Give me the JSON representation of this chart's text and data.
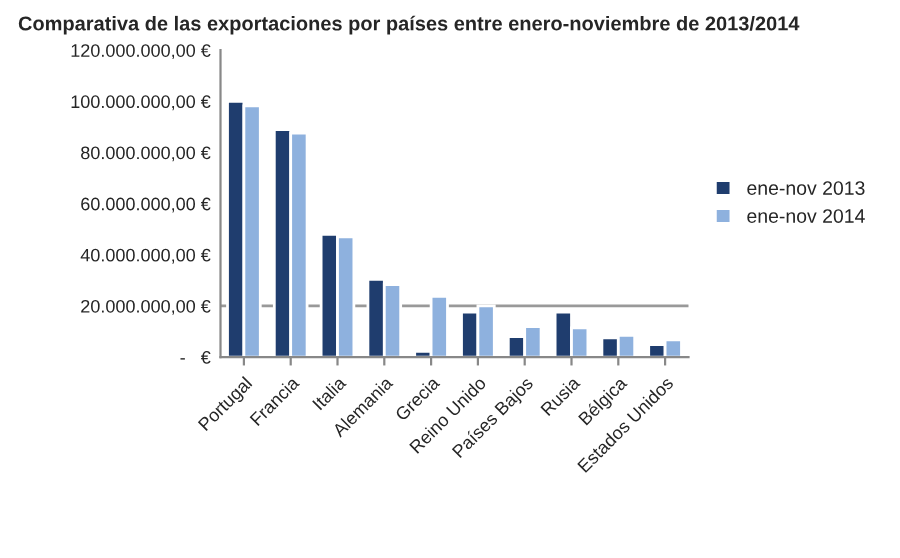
{
  "chart_data": {
    "type": "bar",
    "title": "Comparativa de las exportaciones por países entre enero-noviembre de 2013/2014",
    "categories": [
      "Portugal",
      "Francia",
      "Italia",
      "Alemania",
      "Grecia",
      "Reino Unido",
      "Países Bajos",
      "Rusia",
      "Bélgica",
      "Estados Unidos"
    ],
    "series": [
      {
        "name": "ene-nov 2013",
        "color": "#1f3d6e",
        "values": [
          100000000,
          89000000,
          48000000,
          30400000,
          2300000,
          17600000,
          8000000,
          17600000,
          7500000,
          4900000
        ]
      },
      {
        "name": "ene-nov 2014",
        "color": "#8eb1de",
        "values": [
          98200000,
          87600000,
          47000000,
          28400000,
          23800000,
          20000000,
          11900000,
          11400000,
          8500000,
          6700000
        ]
      }
    ],
    "ylim": [
      0,
      120000000
    ],
    "yticks": [
      {
        "value": 0,
        "label": "-   €"
      },
      {
        "value": 20000000,
        "label": "20.000.000,00 €"
      },
      {
        "value": 40000000,
        "label": "40.000.000,00 €"
      },
      {
        "value": 60000000,
        "label": "60.000.000,00 €"
      },
      {
        "value": 80000000,
        "label": "80.000.000,00 €"
      },
      {
        "value": 100000000,
        "label": "100.000.000,00 €"
      },
      {
        "value": 120000000,
        "label": "120.000.000,00 €"
      }
    ],
    "ref_lines": [
      {
        "axis": "y",
        "value": 20000000,
        "color": "#999999"
      }
    ],
    "grid": false,
    "legend": "right"
  }
}
